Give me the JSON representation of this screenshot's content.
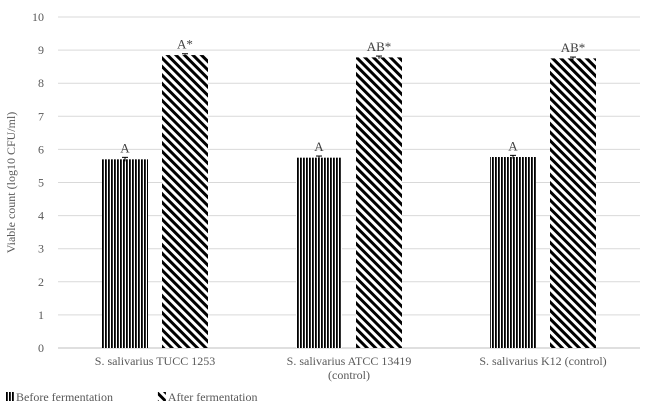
{
  "chart_data": {
    "type": "bar",
    "ylabel": "Viable count (log10 CFU/ml)",
    "xlabel": "",
    "ylim": [
      0,
      10
    ],
    "yticks": [
      0,
      1,
      2,
      3,
      4,
      5,
      6,
      7,
      8,
      9,
      10
    ],
    "grid": true,
    "legend_position": "bottom-left",
    "categories": [
      [
        "S. salivarius TUCC 1253"
      ],
      [
        "S. salivarius ATCC 13419",
        "(control)"
      ],
      [
        "S. salivarius K12 (control)"
      ]
    ],
    "series": [
      {
        "name": "Before fermentation",
        "pattern": "vertical-stripes",
        "values": [
          5.7,
          5.75,
          5.77
        ],
        "errors": [
          0.06,
          0.05,
          0.05
        ],
        "labels": [
          "A",
          "A",
          "A"
        ]
      },
      {
        "name": "After fermentation",
        "pattern": "diagonal-stripes",
        "values": [
          8.85,
          8.78,
          8.75
        ],
        "errors": [
          0.04,
          0.04,
          0.04
        ],
        "labels": [
          "A*",
          "AB*",
          "AB*"
        ]
      }
    ]
  },
  "colors": {
    "bar_ink": "#000000",
    "grid": "#d9d9d9",
    "text": "#595959"
  }
}
